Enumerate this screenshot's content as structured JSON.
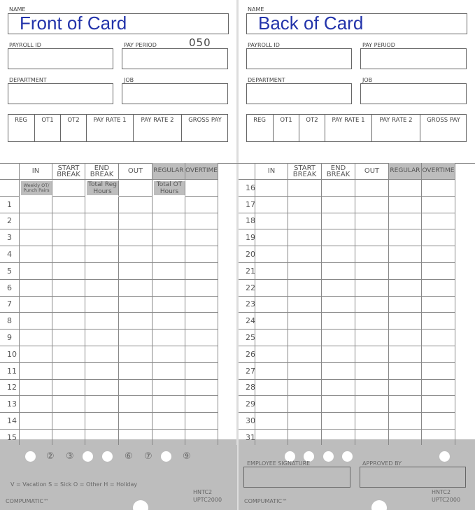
{
  "front": {
    "name_label": "NAME",
    "title": "Front of Card",
    "payroll_id": "PAYROLL ID",
    "pay_period": "PAY PERIOD",
    "card_number": "050",
    "department": "DEPARTMENT",
    "job": "JOB",
    "pay_fields": [
      "REG",
      "OT1",
      "OT2",
      "PAY RATE 1",
      "PAY RATE 2",
      "GROSS PAY"
    ],
    "columns": [
      "IN",
      "START BREAK",
      "END BREAK",
      "OUT",
      "REGULAR",
      "OVERTIME"
    ],
    "subheader": {
      "in": "Weekly OT/ Punch Pairs",
      "end_break": "Total Reg Hours",
      "regular": "Total OT Hours"
    },
    "rows": [
      "1",
      "2",
      "3",
      "4",
      "5",
      "6",
      "7",
      "8",
      "9",
      "10",
      "11",
      "12",
      "13",
      "14",
      "15"
    ],
    "hole_numbers": [
      "②",
      "③",
      "⑥",
      "⑦",
      "⑨"
    ],
    "legend": "V = Vacation   S = Sick   O = Other   H = Holiday",
    "brand": "COMPUMATIC™",
    "model": [
      "HNTC2",
      "UPTC2000"
    ]
  },
  "back": {
    "name_label": "NAME",
    "title": "Back of Card",
    "payroll_id": "PAYROLL ID",
    "pay_period": "PAY PERIOD",
    "department": "DEPARTMENT",
    "job": "JOB",
    "pay_fields": [
      "REG",
      "OT1",
      "OT2",
      "PAY RATE 1",
      "PAY RATE 2",
      "GROSS PAY"
    ],
    "columns": [
      "IN",
      "START BREAK",
      "END BREAK",
      "OUT",
      "REGULAR",
      "OVERTIME"
    ],
    "rows": [
      "16",
      "17",
      "18",
      "19",
      "20",
      "21",
      "22",
      "23",
      "24",
      "25",
      "26",
      "27",
      "28",
      "29",
      "30",
      "31"
    ],
    "signature": "EMPLOYEE SIGNATURE",
    "approved": "APPROVED BY",
    "brand": "COMPUMATIC™",
    "model": [
      "HNTC2",
      "UPTC2000"
    ]
  }
}
